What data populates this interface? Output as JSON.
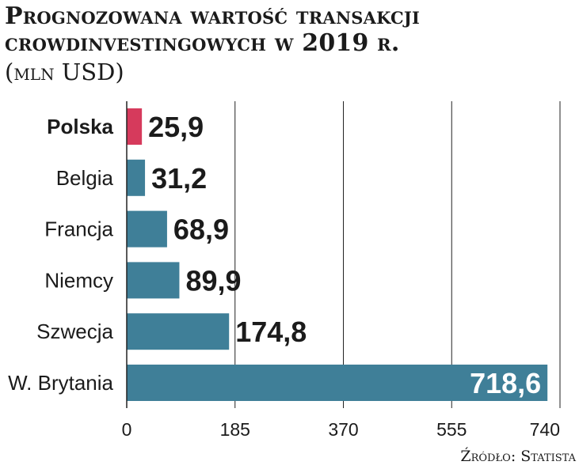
{
  "chart_data": {
    "type": "bar",
    "orientation": "horizontal",
    "title": "Prognozowana wartość transakcji crowdinvestingowych w 2019 r.",
    "subtitle": "(mln USD)",
    "categories": [
      "Polska",
      "Belgia",
      "Francja",
      "Niemcy",
      "Szwecja",
      "W. Brytania"
    ],
    "values": [
      25.9,
      31.2,
      68.9,
      89.9,
      174.8,
      718.6
    ],
    "value_labels": [
      "25,9",
      "31,2",
      "68,9",
      "89,9",
      "174,8",
      "718,6"
    ],
    "highlight_category": "Polska",
    "xlim": [
      0,
      740
    ],
    "xticks": [
      0,
      185,
      370,
      555,
      740
    ],
    "xtick_labels": [
      "0",
      "185",
      "370",
      "555",
      "740"
    ],
    "grid": "vertical",
    "colors": {
      "bar": "#3f7f98",
      "highlight": "#d63a5c",
      "grid": "#222222"
    },
    "source": "Źródło: Statista"
  }
}
